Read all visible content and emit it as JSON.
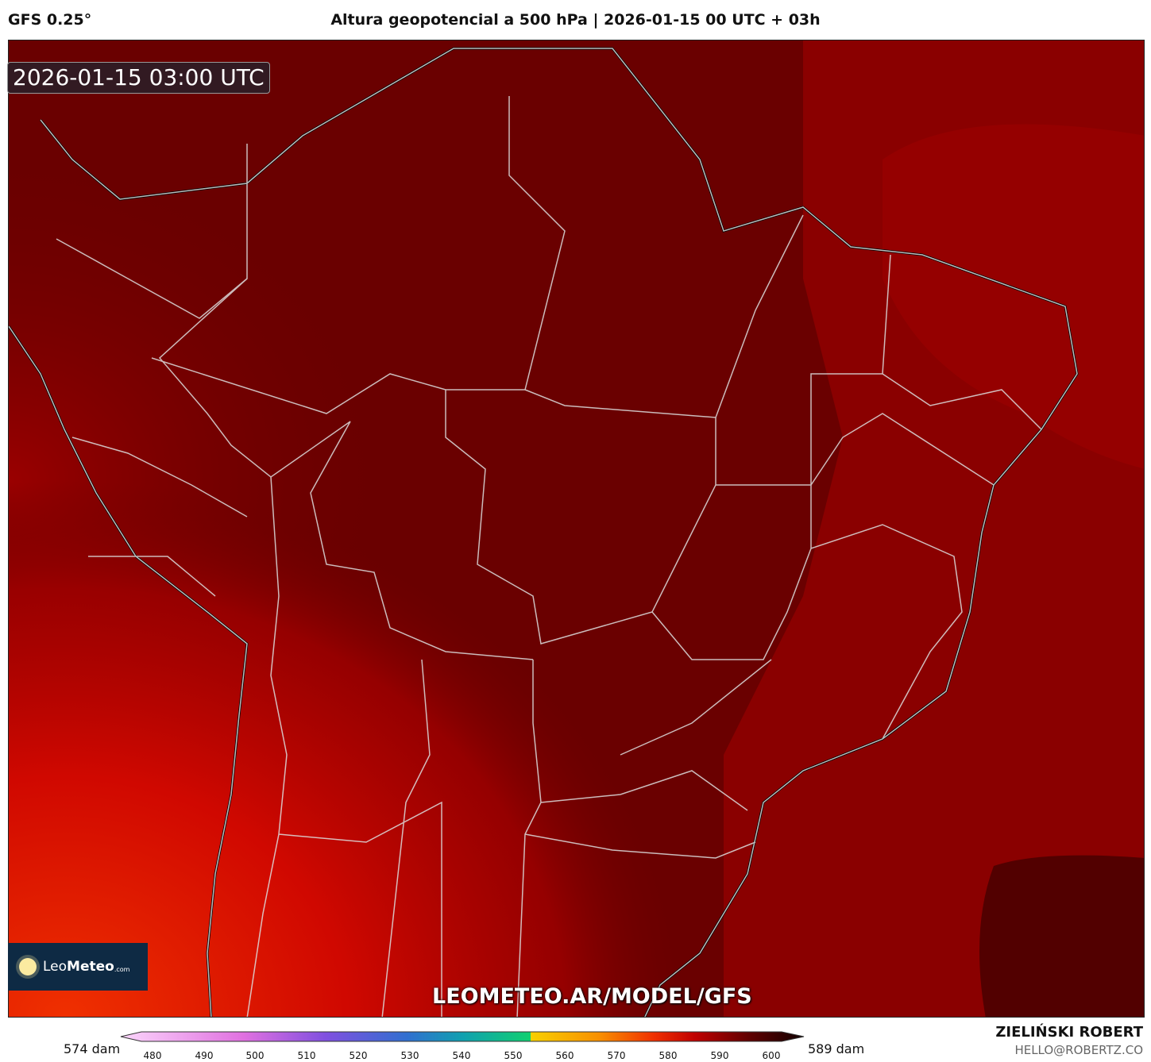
{
  "header": {
    "model": "GFS 0.25°",
    "title": "Altura geopotencial a 500 hPa | 2026-01-15 00 UTC + 03h"
  },
  "map": {
    "valid_time": "2026-01-15 03:00 UTC",
    "watermark": "LEOMETEO.AR/MODEL/GFS",
    "logo": {
      "part1": "Leo",
      "part2": "Meteo",
      "part3": ".com"
    },
    "colors": {
      "base": "#6a0000",
      "east": "#8a0000",
      "southwest": "#e01800",
      "southeast_low": "#520000"
    }
  },
  "colorbar": {
    "min_label": "574 dam",
    "max_label": "589 dam",
    "ticks": [
      "480",
      "490",
      "500",
      "510",
      "520",
      "530",
      "540",
      "550",
      "560",
      "570",
      "580",
      "590",
      "600"
    ],
    "stops": [
      "#fbd6fb",
      "#e070e0",
      "#8050e0",
      "#3070d0",
      "#10a0b0",
      "#10d070",
      "#f8d000",
      "#f89000",
      "#f03000",
      "#c00000",
      "#600000",
      "#100000"
    ]
  },
  "credits": {
    "author": "ZIELIŃSKI ROBERT",
    "email": "HELLO@ROBERTZ.CO"
  }
}
